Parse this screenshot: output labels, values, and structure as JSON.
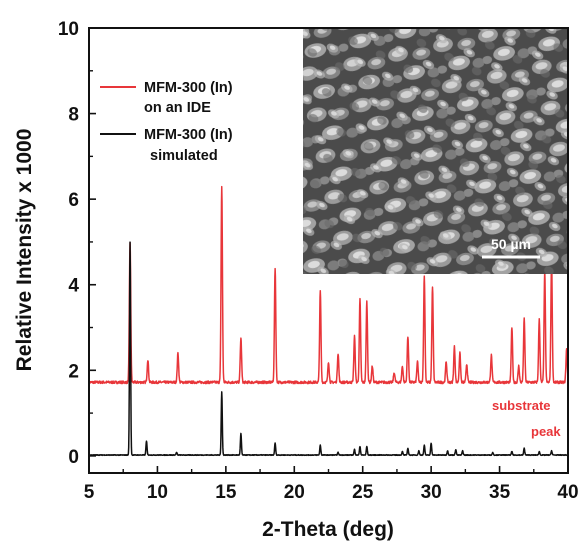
{
  "colors": {
    "measured": "#e8363a",
    "simulated": "#111111",
    "annotation": "#e8363a",
    "inset_bg": "#4a4a4a"
  },
  "chart_data": {
    "type": "line",
    "xlabel": "2-Theta (deg)",
    "ylabel": "Relative Intensity x 1000",
    "xlim": [
      5,
      40
    ],
    "ylim": [
      -0.4,
      10
    ],
    "x_ticks": [
      5,
      10,
      15,
      20,
      25,
      30,
      35,
      40
    ],
    "x_tick_labels": [
      "5",
      "10",
      "15",
      "20",
      "25",
      "30",
      "35",
      "40"
    ],
    "y_ticks": [
      0,
      2,
      4,
      6,
      8,
      10
    ],
    "y_tick_labels": [
      "0",
      "2",
      "4",
      "6",
      "8",
      "10"
    ],
    "grid": false,
    "legend_position": "top-left",
    "series": [
      {
        "name": "MFM-300 (In) on an IDE",
        "legend_lines": [
          "MFM-300 (In)",
          "on an IDE"
        ],
        "color": "#e8363a",
        "baseline": 1.72,
        "peaks": [
          {
            "x": 8.0,
            "y": 5.0
          },
          {
            "x": 9.3,
            "y": 2.25
          },
          {
            "x": 11.5,
            "y": 2.4
          },
          {
            "x": 14.7,
            "y": 6.3
          },
          {
            "x": 16.1,
            "y": 2.75
          },
          {
            "x": 18.6,
            "y": 4.4
          },
          {
            "x": 21.9,
            "y": 3.85
          },
          {
            "x": 22.5,
            "y": 2.2
          },
          {
            "x": 23.2,
            "y": 2.4
          },
          {
            "x": 24.4,
            "y": 2.8
          },
          {
            "x": 24.8,
            "y": 3.65
          },
          {
            "x": 25.3,
            "y": 3.6
          },
          {
            "x": 25.7,
            "y": 2.1
          },
          {
            "x": 27.3,
            "y": 1.95
          },
          {
            "x": 27.9,
            "y": 2.1
          },
          {
            "x": 28.3,
            "y": 2.8
          },
          {
            "x": 29.0,
            "y": 2.2
          },
          {
            "x": 29.5,
            "y": 4.2
          },
          {
            "x": 30.1,
            "y": 3.95
          },
          {
            "x": 31.1,
            "y": 2.2
          },
          {
            "x": 31.7,
            "y": 2.55
          },
          {
            "x": 32.1,
            "y": 2.4
          },
          {
            "x": 32.6,
            "y": 2.15
          },
          {
            "x": 34.4,
            "y": 2.35
          },
          {
            "x": 35.9,
            "y": 3.0
          },
          {
            "x": 36.4,
            "y": 2.1
          },
          {
            "x": 36.8,
            "y": 3.2
          },
          {
            "x": 37.9,
            "y": 3.2
          },
          {
            "x": 38.3,
            "y": 4.3
          },
          {
            "x": 38.8,
            "y": 4.6
          },
          {
            "x": 39.9,
            "y": 2.5
          }
        ]
      },
      {
        "name": "MFM-300 (In) simulated",
        "legend_lines": [
          "MFM-300 (In)",
          "simulated"
        ],
        "color": "#111111",
        "baseline": 0.02,
        "peaks": [
          {
            "x": 8.0,
            "y": 5.0
          },
          {
            "x": 9.2,
            "y": 0.35
          },
          {
            "x": 11.4,
            "y": 0.08
          },
          {
            "x": 14.7,
            "y": 1.5
          },
          {
            "x": 16.1,
            "y": 0.52
          },
          {
            "x": 18.6,
            "y": 0.3
          },
          {
            "x": 21.9,
            "y": 0.25
          },
          {
            "x": 23.2,
            "y": 0.08
          },
          {
            "x": 24.4,
            "y": 0.15
          },
          {
            "x": 24.8,
            "y": 0.22
          },
          {
            "x": 25.3,
            "y": 0.22
          },
          {
            "x": 27.9,
            "y": 0.1
          },
          {
            "x": 28.3,
            "y": 0.18
          },
          {
            "x": 29.1,
            "y": 0.12
          },
          {
            "x": 29.5,
            "y": 0.25
          },
          {
            "x": 30.0,
            "y": 0.3
          },
          {
            "x": 31.2,
            "y": 0.12
          },
          {
            "x": 31.8,
            "y": 0.15
          },
          {
            "x": 32.3,
            "y": 0.12
          },
          {
            "x": 34.5,
            "y": 0.08
          },
          {
            "x": 35.9,
            "y": 0.1
          },
          {
            "x": 36.8,
            "y": 0.18
          },
          {
            "x": 37.9,
            "y": 0.1
          },
          {
            "x": 38.8,
            "y": 0.12
          }
        ]
      }
    ],
    "annotations": [
      {
        "text": "substrate",
        "color": "#e8363a"
      },
      {
        "text": "peak",
        "color": "#e8363a"
      }
    ],
    "inset": {
      "kind": "SEM micrograph",
      "scale_bar_label": "50 µm"
    }
  }
}
